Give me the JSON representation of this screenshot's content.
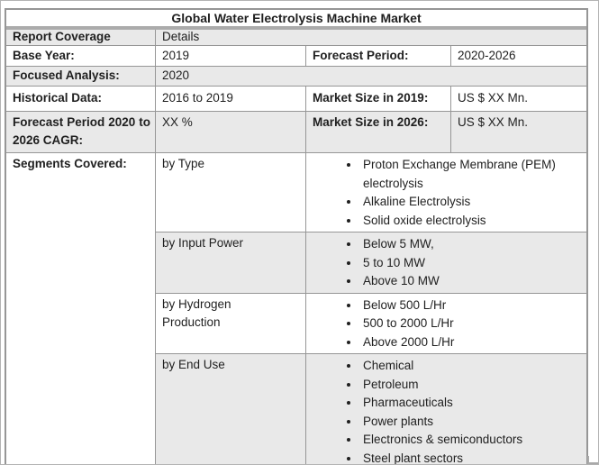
{
  "colors": {
    "alt_row_bg": "#e9e9e9",
    "table_border": "#969696",
    "title_divider": "#ababab",
    "page_frame": "#b3b3b3",
    "text": "#1f1f1f"
  },
  "table": {
    "title": "Global Water Electrolysis Machine Market",
    "coverage": {
      "label": "Report Coverage",
      "value": "Details"
    },
    "base_year": {
      "label": "Base Year:",
      "value": "2019"
    },
    "forecast_period": {
      "label": "Forecast Period:",
      "value": "2020-2026"
    },
    "focused_analysis": {
      "label": "Focused Analysis:",
      "value": "2020"
    },
    "historical_data": {
      "label": "Historical Data:",
      "value": "2016 to 2019"
    },
    "market_size_2019": {
      "label": "Market Size in 2019:",
      "value": "US $ XX Mn."
    },
    "forecast_cagr": {
      "label": "Forecast Period 2020 to 2026 CAGR:",
      "value": "XX %"
    },
    "market_size_2026": {
      "label": "Market Size in 2026:",
      "value": "US $ XX Mn."
    },
    "segments": {
      "label": "Segments Covered:",
      "groups": [
        {
          "name": "by Type",
          "items": [
            "Proton Exchange Membrane (PEM) electrolysis",
            "Alkaline Electrolysis",
            "Solid oxide electrolysis"
          ]
        },
        {
          "name": "by Input Power",
          "items": [
            "Below 5 MW,",
            "5 to 10 MW",
            "Above 10 MW"
          ]
        },
        {
          "name": "by Hydrogen Production",
          "items": [
            "Below 500 L/Hr",
            "500 to 2000 L/Hr",
            "Above 2000 L/Hr"
          ]
        },
        {
          "name": "by End Use",
          "items": [
            "Chemical",
            "Petroleum",
            "Pharmaceuticals",
            "Power plants",
            "Electronics & semiconductors",
            "Steel plant sectors"
          ]
        }
      ]
    }
  }
}
